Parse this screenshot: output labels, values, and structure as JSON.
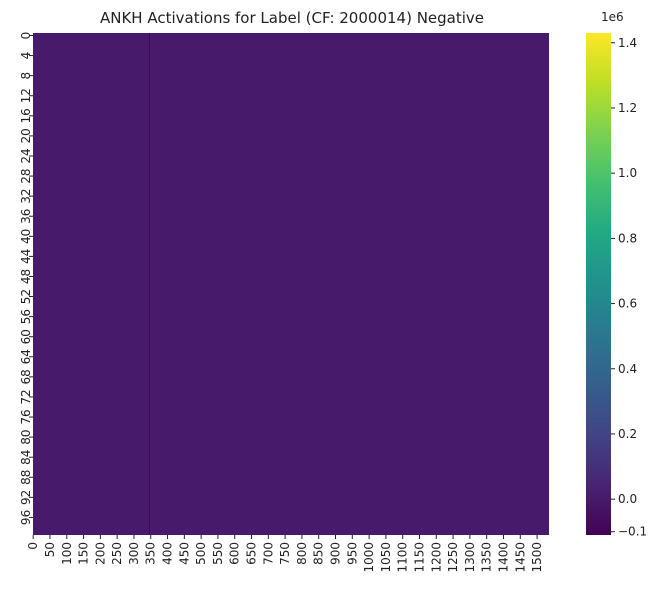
{
  "chart_data": {
    "type": "heatmap",
    "title": "ANKH Activations for Label (CF: 2000014) Negative",
    "xlabel": "",
    "ylabel": "",
    "x_range": [
      0,
      1535
    ],
    "x_ticks": [
      "0",
      "50",
      "100",
      "150",
      "200",
      "250",
      "300",
      "350",
      "400",
      "450",
      "500",
      "550",
      "600",
      "650",
      "700",
      "750",
      "800",
      "850",
      "900",
      "950",
      "1000",
      "1050",
      "1100",
      "1150",
      "1200",
      "1250",
      "1300",
      "1350",
      "1400",
      "1450",
      "1500"
    ],
    "y_range": [
      0,
      99
    ],
    "y_ticks": [
      "0",
      "4",
      "8",
      "12",
      "16",
      "20",
      "24",
      "28",
      "32",
      "36",
      "40",
      "44",
      "48",
      "52",
      "56",
      "60",
      "64",
      "68",
      "72",
      "76",
      "80",
      "84",
      "88",
      "92",
      "96"
    ],
    "baseline_value": 0,
    "outlier_column": {
      "index": 345,
      "value": -0.1
    },
    "colorbar": {
      "colormap": "viridis",
      "min": -0.11,
      "max": 1.43,
      "ticks": [
        "1.4",
        "1.2",
        "1.0",
        "0.8",
        "0.6",
        "0.4",
        "0.2",
        "0.0"
      ],
      "tick_values": [
        1.4,
        1.2,
        1.0,
        0.8,
        0.6,
        0.4,
        0.2,
        0.0
      ],
      "scale_label": "1e6",
      "extra_tick": {
        "label": "−0.1",
        "value": -0.1
      }
    },
    "colors": {
      "viridis": [
        "#440154",
        "#482475",
        "#414487",
        "#355f8d",
        "#2a788e",
        "#21918c",
        "#22a884",
        "#44bf70",
        "#7ad151",
        "#bddf26",
        "#fde725"
      ]
    }
  }
}
